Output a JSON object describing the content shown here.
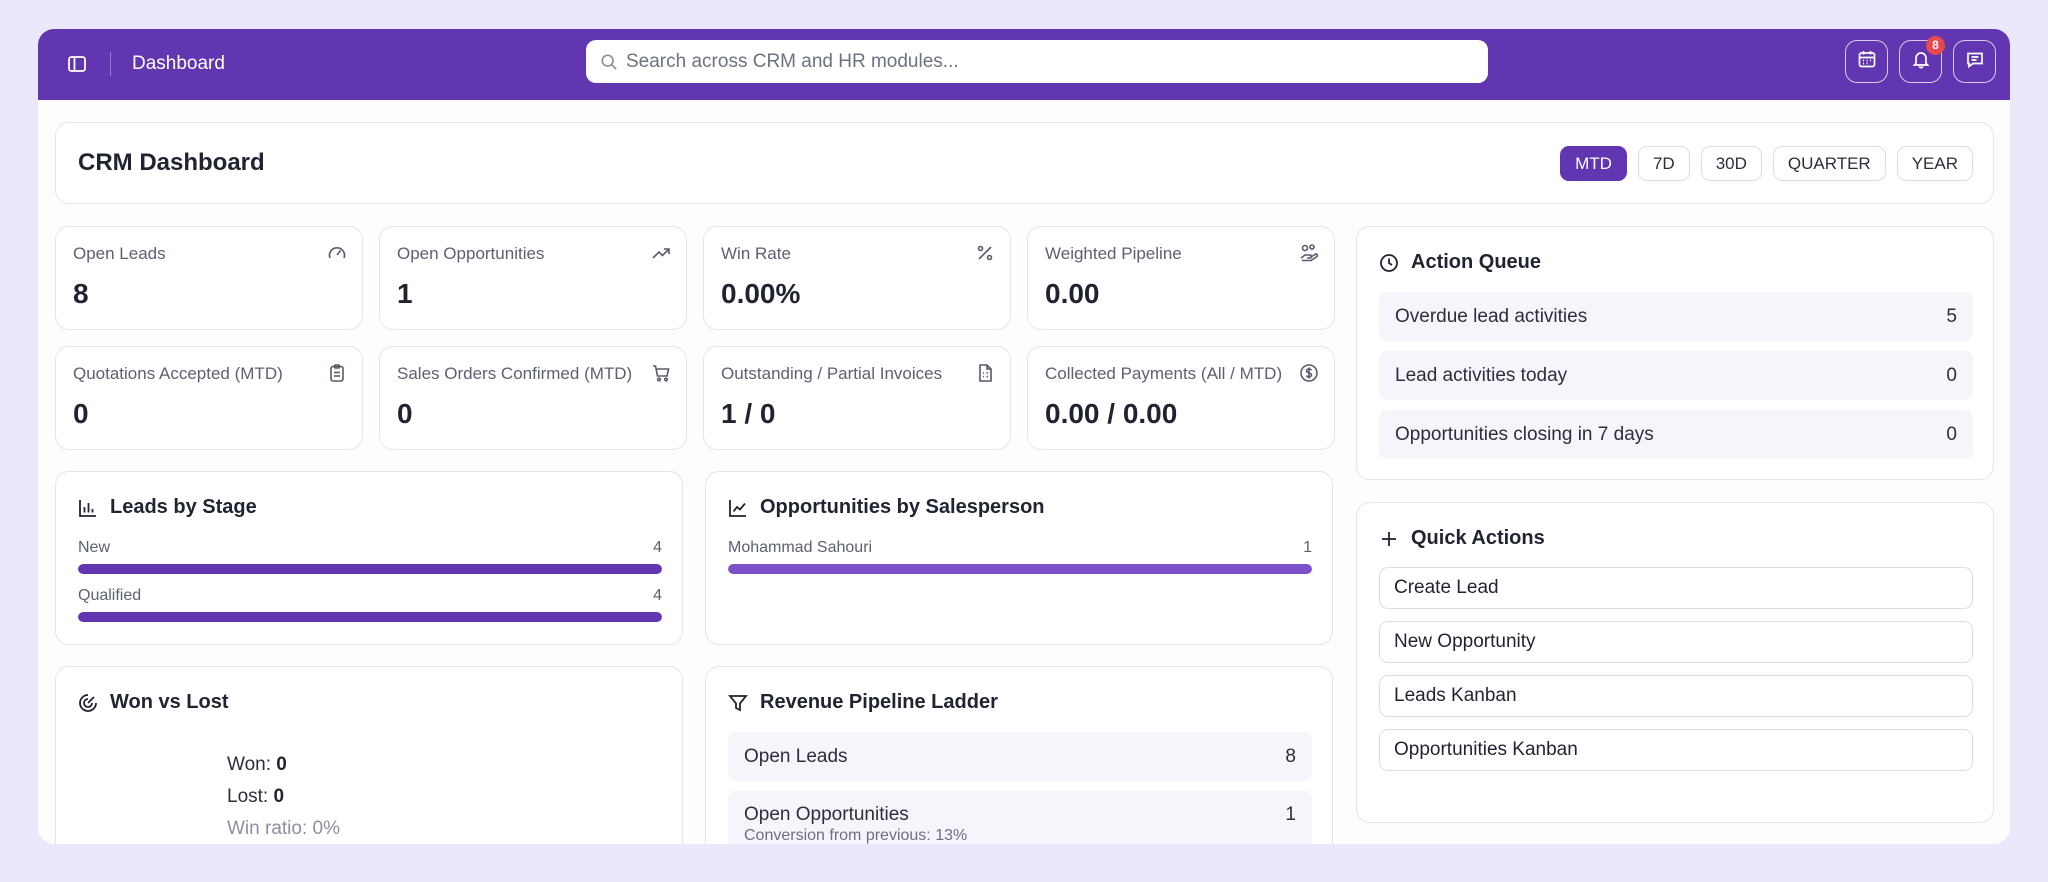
{
  "header": {
    "title": "Dashboard",
    "search_placeholder": "Search across CRM and HR modules...",
    "notification_count": "8",
    "accent_color": "#6236b0"
  },
  "page": {
    "title": "CRM Dashboard",
    "ranges": [
      "MTD",
      "7D",
      "30D",
      "QUARTER",
      "YEAR"
    ],
    "active_range": "MTD"
  },
  "kpis": [
    {
      "label": "Open Leads",
      "value": "8",
      "icon": "gauge-icon"
    },
    {
      "label": "Open Opportunities",
      "value": "1",
      "icon": "trending-up-icon"
    },
    {
      "label": "Win Rate",
      "value": "0.00%",
      "icon": "percent-icon"
    },
    {
      "label": "Weighted Pipeline",
      "value": "0.00",
      "icon": "coins-hand-icon"
    },
    {
      "label": "Quotations Accepted (MTD)",
      "value": "0",
      "icon": "clipboard-icon"
    },
    {
      "label": "Sales Orders Confirmed (MTD)",
      "value": "0",
      "icon": "cart-icon"
    },
    {
      "label": "Outstanding / Partial Invoices",
      "value": "1 / 0",
      "icon": "invoice-icon"
    },
    {
      "label": "Collected Payments (All / MTD)",
      "value": "0.00 / 0.00",
      "icon": "dollar-circle-icon"
    }
  ],
  "leads_by_stage": {
    "title": "Leads by Stage",
    "rows": [
      {
        "label": "New",
        "value": "4",
        "fill": 1.0
      },
      {
        "label": "Qualified",
        "value": "4",
        "fill": 1.0
      }
    ]
  },
  "opps_by_salesperson": {
    "title": "Opportunities by Salesperson",
    "rows": [
      {
        "label": "Mohammad Sahouri",
        "value": "1",
        "fill": 1.0
      }
    ]
  },
  "won_vs_lost": {
    "title": "Won vs Lost",
    "won_label": "Won:",
    "won_value": "0",
    "lost_label": "Lost:",
    "lost_value": "0",
    "ratio_text": "Win ratio: 0%"
  },
  "revenue_ladder": {
    "title": "Revenue Pipeline Ladder",
    "rows": [
      {
        "label": "Open Leads",
        "value": "8",
        "conversion": ""
      },
      {
        "label": "Open Opportunities",
        "value": "1",
        "conversion": "Conversion from previous: 13%"
      }
    ]
  },
  "action_queue": {
    "title": "Action Queue",
    "rows": [
      {
        "label": "Overdue lead activities",
        "value": "5"
      },
      {
        "label": "Lead activities today",
        "value": "0"
      },
      {
        "label": "Opportunities closing in 7 days",
        "value": "0"
      }
    ]
  },
  "quick_actions": {
    "title": "Quick Actions",
    "items": [
      "Create Lead",
      "New Opportunity",
      "Leads Kanban",
      "Opportunities Kanban"
    ]
  }
}
